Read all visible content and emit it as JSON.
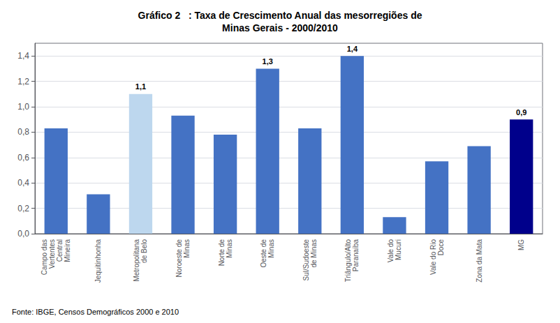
{
  "chart_data": {
    "type": "bar",
    "title": "Gráfico 2   : Taxa de Crescimento Anual das mesorregiões de\nMinas Gerais - 2000/2010",
    "categories": [
      "Campo das\nVertentes\nCentral\nMineira",
      "Jequitinhonha",
      "Metropolitana\nde Belo",
      "Noroeste de\nMinas",
      "Norte de\nMinas",
      "Oeste de\nMinas",
      "Sul/Sudoeste\nde Minas",
      "Triângulo/Alto\nParanaíba",
      "Vale do\nMucuri",
      "Vale do Rio\nDoce",
      "Zona da Mata",
      "MG"
    ],
    "values": [
      0.83,
      0.31,
      1.1,
      0.93,
      0.78,
      1.3,
      0.83,
      1.4,
      0.13,
      0.57,
      0.69,
      0.9
    ],
    "colors": [
      "#4472C4",
      "#4472C4",
      "#BDD7EE",
      "#4472C4",
      "#4472C4",
      "#4472C4",
      "#4472C4",
      "#4472C4",
      "#4472C4",
      "#4472C4",
      "#4472C4",
      "#00008B"
    ],
    "data_labels": true,
    "value_labels": [
      null,
      null,
      "1,1",
      null,
      null,
      "1,3",
      null,
      "1,4",
      null,
      null,
      null,
      "0,9"
    ],
    "ylim": [
      0,
      1.5
    ],
    "yticks": [
      {
        "value": 0.0,
        "label": "0,0"
      },
      {
        "value": 0.2,
        "label": "0,2"
      },
      {
        "value": 0.4,
        "label": "0,4"
      },
      {
        "value": 0.6,
        "label": "0,6"
      },
      {
        "value": 0.8,
        "label": "0,8"
      },
      {
        "value": 1.0,
        "label": "1,0"
      },
      {
        "value": 1.2,
        "label": "1,2"
      },
      {
        "value": 1.4,
        "label": "1,4"
      }
    ],
    "grid": true,
    "source": "Fonte: IBGE, Censos Demográficos 2000 e 2010"
  }
}
